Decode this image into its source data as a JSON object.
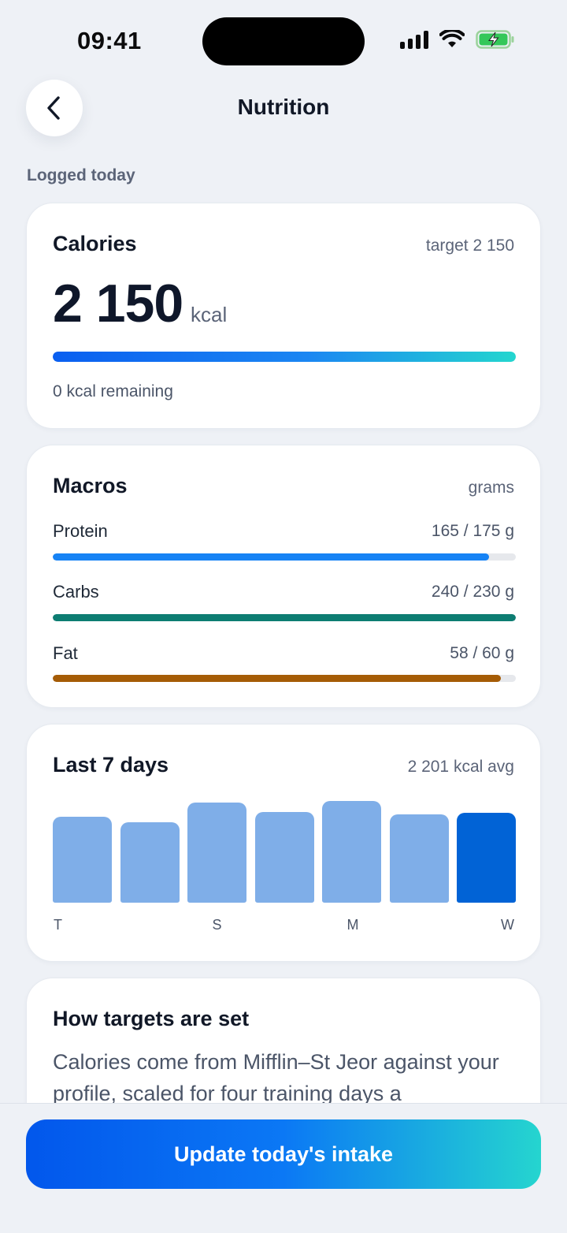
{
  "status": {
    "time": "09:41"
  },
  "header": {
    "title": "Nutrition"
  },
  "section_label": "Logged today",
  "calories": {
    "title": "Calories",
    "target": "target 2 150",
    "value": "2 150",
    "unit": "kcal",
    "progress": 1.0,
    "remaining": "0 kcal remaining"
  },
  "macros": {
    "title": "Macros",
    "unit_label": "grams",
    "items": [
      {
        "label": "Protein",
        "value": "165 / 175 g",
        "progress": 0.943,
        "color": "#1683f5"
      },
      {
        "label": "Carbs",
        "value": "240 / 230 g",
        "progress": 1.0,
        "color": "#0d7d72"
      },
      {
        "label": "Fat",
        "value": "58 / 60 g",
        "progress": 0.967,
        "color": "#a55c06"
      }
    ]
  },
  "week": {
    "title": "Last 7 days",
    "average": "2 201 kcal avg",
    "chart_data": {
      "type": "bar",
      "categories": [
        "T",
        "",
        "S",
        "",
        "M",
        "",
        "W"
      ],
      "values": [
        2160,
        2120,
        2270,
        2200,
        2280,
        2180,
        2190
      ],
      "highlight_index": 6,
      "colors": {
        "bar": "#7faee8",
        "highlight": "#0163d6"
      }
    }
  },
  "info": {
    "title": "How targets are set",
    "body": "Calories come from Mifflin–St Jeor against your profile, scaled for four training days a"
  },
  "cta": {
    "label": "Update today's intake"
  }
}
